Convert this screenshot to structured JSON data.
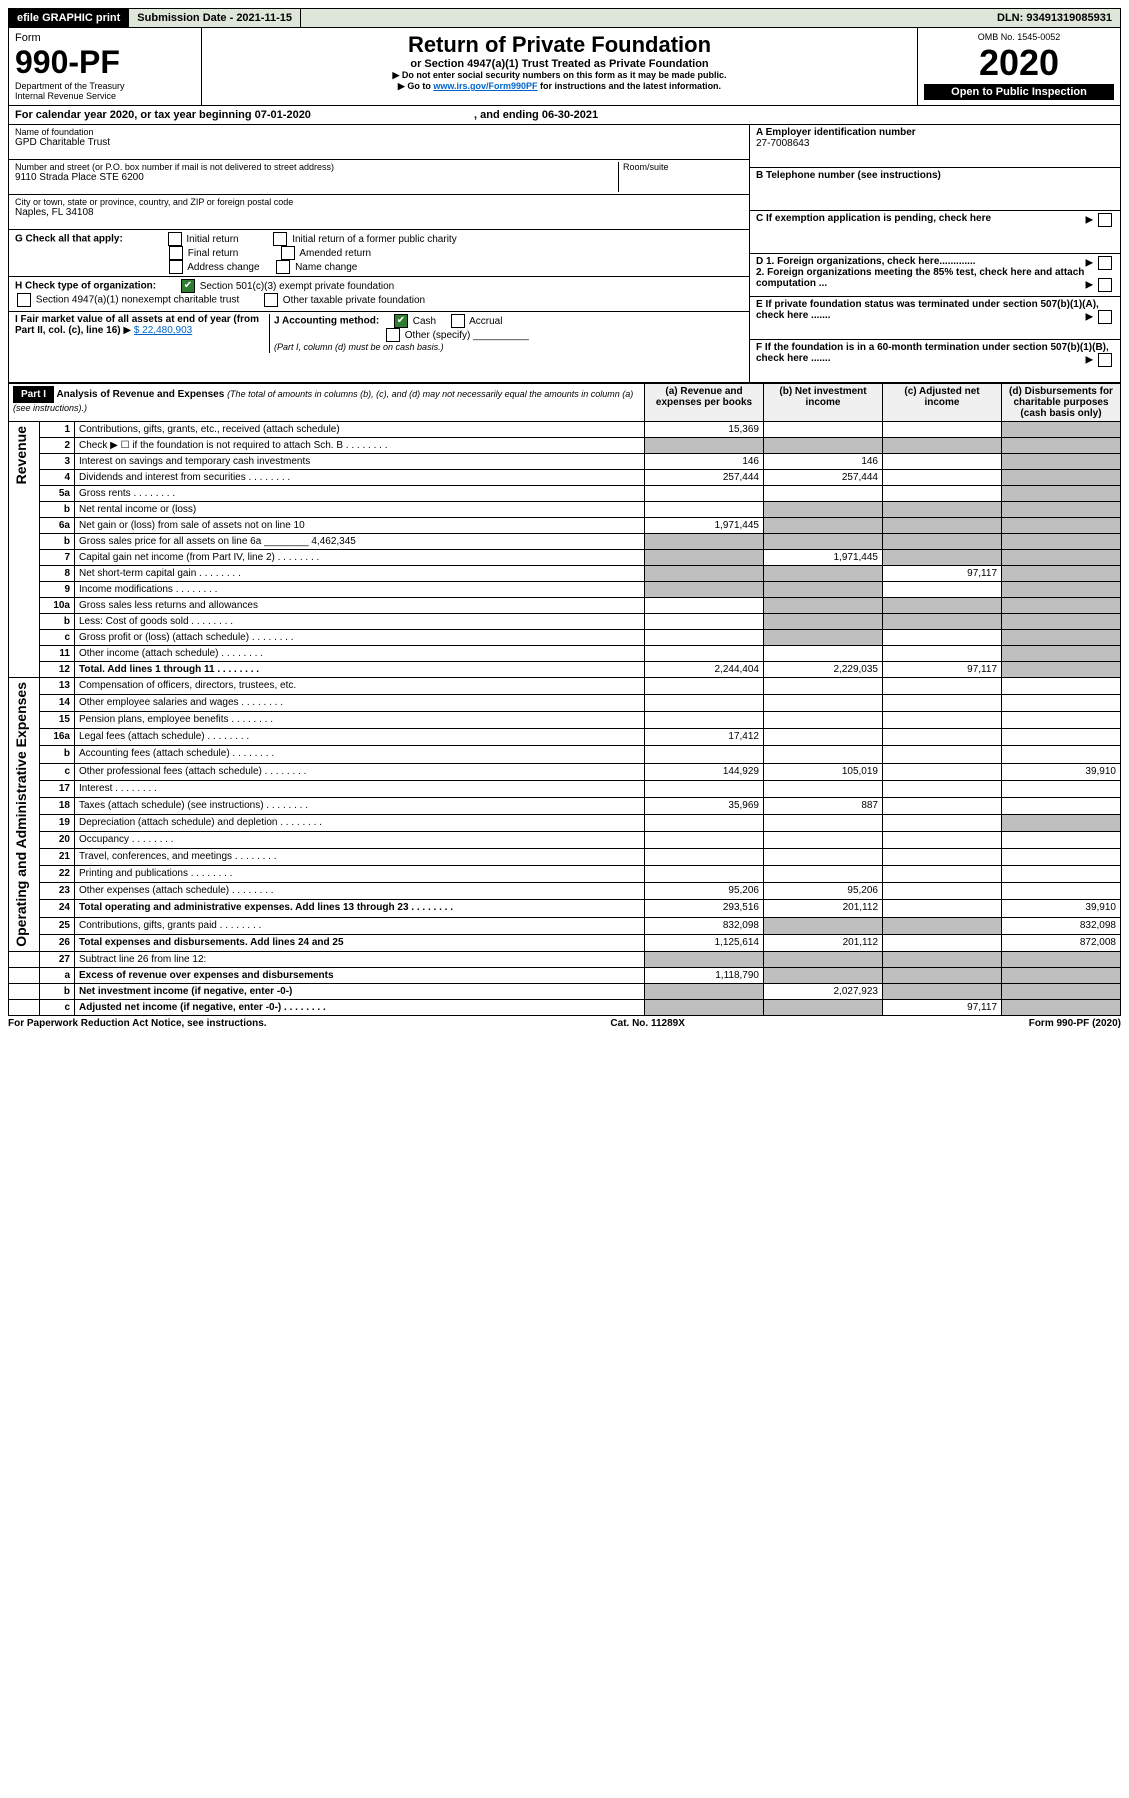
{
  "topbar": {
    "efile": "efile GRAPHIC print",
    "subdate_label": "Submission Date - 2021-11-15",
    "dln": "DLN: 93491319085931"
  },
  "header": {
    "form_word": "Form",
    "form_num": "990-PF",
    "dept": "Department of the Treasury",
    "irs": "Internal Revenue Service",
    "title": "Return of Private Foundation",
    "subtitle": "or Section 4947(a)(1) Trust Treated as Private Foundation",
    "note1": "Do not enter social security numbers on this form as it may be made public.",
    "note2_pre": "Go to ",
    "note2_link": "www.irs.gov/Form990PF",
    "note2_post": " for instructions and the latest information.",
    "omb": "OMB No. 1545-0052",
    "year": "2020",
    "inspect": "Open to Public Inspection"
  },
  "cal": {
    "text_pre": "For calendar year 2020, or tax year beginning ",
    "begin": "07-01-2020",
    "text_mid": ", and ending ",
    "end": "06-30-2021"
  },
  "info": {
    "name_label": "Name of foundation",
    "name": "GPD Charitable Trust",
    "addr_label": "Number and street (or P.O. box number if mail is not delivered to street address)",
    "addr": "9110 Strada Place STE 6200",
    "room_label": "Room/suite",
    "city_label": "City or town, state or province, country, and ZIP or foreign postal code",
    "city": "Naples, FL  34108",
    "ein_label": "A Employer identification number",
    "ein": "27-7008643",
    "tel_label": "B Telephone number (see instructions)",
    "c_label": "C If exemption application is pending, check here",
    "g_label": "G Check all that apply:",
    "g1": "Initial return",
    "g2": "Initial return of a former public charity",
    "g3": "Final return",
    "g4": "Amended return",
    "g5": "Address change",
    "g6": "Name change",
    "d1": "D 1. Foreign organizations, check here.............",
    "d2": "2. Foreign organizations meeting the 85% test, check here and attach computation ...",
    "h_label": "H Check type of organization:",
    "h1": "Section 501(c)(3) exempt private foundation",
    "h2": "Section 4947(a)(1) nonexempt charitable trust",
    "h3": "Other taxable private foundation",
    "e_label": "E  If private foundation status was terminated under section 507(b)(1)(A), check here .......",
    "i_label": "I Fair market value of all assets at end of year (from Part II, col. (c), line 16) ",
    "i_val": "$  22,480,903",
    "j_label": "J Accounting method:",
    "j1": "Cash",
    "j2": "Accrual",
    "j3": "Other (specify)",
    "j_note": "(Part I, column (d) must be on cash basis.)",
    "f_label": "F  If the foundation is in a 60-month termination under section 507(b)(1)(B), check here ......."
  },
  "part1": {
    "label": "Part I",
    "title": "Analysis of Revenue and Expenses",
    "title_note": " (The total of amounts in columns (b), (c), and (d) may not necessarily equal the amounts in column (a) (see instructions).)",
    "col_a": "(a) Revenue and expenses per books",
    "col_b": "(b) Net investment income",
    "col_c": "(c) Adjusted net income",
    "col_d": "(d) Disbursements for charitable purposes (cash basis only)"
  },
  "vlabels": {
    "revenue": "Revenue",
    "expenses": "Operating and Administrative Expenses"
  },
  "rows": [
    {
      "n": "1",
      "t": "Contributions, gifts, grants, etc., received (attach schedule)",
      "a": "15,369",
      "b": "",
      "c": "",
      "d": "",
      "d_sh": true
    },
    {
      "n": "2",
      "t": "Check ▶ ☐ if the foundation is not required to attach Sch. B",
      "dots": true,
      "a": "",
      "b": "",
      "c": "",
      "d": "",
      "a_sh": true,
      "b_sh": true,
      "c_sh": true,
      "d_sh": true
    },
    {
      "n": "3",
      "t": "Interest on savings and temporary cash investments",
      "a": "146",
      "b": "146",
      "c": "",
      "d": "",
      "d_sh": true
    },
    {
      "n": "4",
      "t": "Dividends and interest from securities",
      "dots": true,
      "a": "257,444",
      "b": "257,444",
      "c": "",
      "d": "",
      "d_sh": true
    },
    {
      "n": "5a",
      "t": "Gross rents",
      "dots": true,
      "a": "",
      "b": "",
      "c": "",
      "d": "",
      "d_sh": true
    },
    {
      "n": "b",
      "t": "Net rental income or (loss)",
      "a": "",
      "b": "",
      "c": "",
      "d": "",
      "a_sh": false,
      "b_sh": true,
      "c_sh": true,
      "d_sh": true
    },
    {
      "n": "6a",
      "t": "Net gain or (loss) from sale of assets not on line 10",
      "a": "1,971,445",
      "b": "",
      "c": "",
      "d": "",
      "b_sh": true,
      "c_sh": true,
      "d_sh": true
    },
    {
      "n": "b",
      "t": "Gross sales price for all assets on line 6a ________ 4,462,345",
      "a": "",
      "b": "",
      "c": "",
      "d": "",
      "a_sh": true,
      "b_sh": true,
      "c_sh": true,
      "d_sh": true
    },
    {
      "n": "7",
      "t": "Capital gain net income (from Part IV, line 2)",
      "dots": true,
      "a": "",
      "b": "1,971,445",
      "c": "",
      "d": "",
      "a_sh": true,
      "c_sh": true,
      "d_sh": true
    },
    {
      "n": "8",
      "t": "Net short-term capital gain",
      "dots": true,
      "a": "",
      "b": "",
      "c": "97,117",
      "d": "",
      "a_sh": true,
      "b_sh": true,
      "d_sh": true
    },
    {
      "n": "9",
      "t": "Income modifications",
      "dots": true,
      "a": "",
      "b": "",
      "c": "",
      "d": "",
      "a_sh": true,
      "b_sh": true,
      "d_sh": true
    },
    {
      "n": "10a",
      "t": "Gross sales less returns and allowances",
      "a": "",
      "b": "",
      "c": "",
      "d": "",
      "a_sh": false,
      "b_sh": true,
      "c_sh": true,
      "d_sh": true
    },
    {
      "n": "b",
      "t": "Less: Cost of goods sold",
      "dots": true,
      "a": "",
      "b": "",
      "c": "",
      "d": "",
      "b_sh": true,
      "c_sh": true,
      "d_sh": true
    },
    {
      "n": "c",
      "t": "Gross profit or (loss) (attach schedule)",
      "dots": true,
      "a": "",
      "b": "",
      "c": "",
      "d": "",
      "b_sh": true,
      "d_sh": true
    },
    {
      "n": "11",
      "t": "Other income (attach schedule)",
      "dots": true,
      "a": "",
      "b": "",
      "c": "",
      "d": "",
      "d_sh": true
    },
    {
      "n": "12",
      "t": "Total. Add lines 1 through 11",
      "bold": true,
      "dots": true,
      "a": "2,244,404",
      "b": "2,229,035",
      "c": "97,117",
      "d": "",
      "d_sh": true
    }
  ],
  "exp_rows": [
    {
      "n": "13",
      "t": "Compensation of officers, directors, trustees, etc.",
      "a": "",
      "b": "",
      "c": "",
      "d": ""
    },
    {
      "n": "14",
      "t": "Other employee salaries and wages",
      "dots": true,
      "a": "",
      "b": "",
      "c": "",
      "d": ""
    },
    {
      "n": "15",
      "t": "Pension plans, employee benefits",
      "dots": true,
      "a": "",
      "b": "",
      "c": "",
      "d": ""
    },
    {
      "n": "16a",
      "t": "Legal fees (attach schedule)",
      "dots": true,
      "a": "17,412",
      "b": "",
      "c": "",
      "d": ""
    },
    {
      "n": "b",
      "t": "Accounting fees (attach schedule)",
      "dots": true,
      "a": "",
      "b": "",
      "c": "",
      "d": ""
    },
    {
      "n": "c",
      "t": "Other professional fees (attach schedule)",
      "dots": true,
      "a": "144,929",
      "b": "105,019",
      "c": "",
      "d": "39,910"
    },
    {
      "n": "17",
      "t": "Interest",
      "dots": true,
      "a": "",
      "b": "",
      "c": "",
      "d": ""
    },
    {
      "n": "18",
      "t": "Taxes (attach schedule) (see instructions)",
      "dots": true,
      "a": "35,969",
      "b": "887",
      "c": "",
      "d": ""
    },
    {
      "n": "19",
      "t": "Depreciation (attach schedule) and depletion",
      "dots": true,
      "a": "",
      "b": "",
      "c": "",
      "d": "",
      "d_sh": true
    },
    {
      "n": "20",
      "t": "Occupancy",
      "dots": true,
      "a": "",
      "b": "",
      "c": "",
      "d": ""
    },
    {
      "n": "21",
      "t": "Travel, conferences, and meetings",
      "dots": true,
      "a": "",
      "b": "",
      "c": "",
      "d": ""
    },
    {
      "n": "22",
      "t": "Printing and publications",
      "dots": true,
      "a": "",
      "b": "",
      "c": "",
      "d": ""
    },
    {
      "n": "23",
      "t": "Other expenses (attach schedule)",
      "dots": true,
      "a": "95,206",
      "b": "95,206",
      "c": "",
      "d": ""
    },
    {
      "n": "24",
      "t": "Total operating and administrative expenses. Add lines 13 through 23",
      "bold": true,
      "dots": true,
      "a": "293,516",
      "b": "201,112",
      "c": "",
      "d": "39,910"
    },
    {
      "n": "25",
      "t": "Contributions, gifts, grants paid",
      "dots": true,
      "a": "832,098",
      "b": "",
      "c": "",
      "d": "832,098",
      "b_sh": true,
      "c_sh": true
    },
    {
      "n": "26",
      "t": "Total expenses and disbursements. Add lines 24 and 25",
      "bold": true,
      "a": "1,125,614",
      "b": "201,112",
      "c": "",
      "d": "872,008"
    }
  ],
  "bottom_rows": [
    {
      "n": "27",
      "t": "Subtract line 26 from line 12:",
      "a": "",
      "b": "",
      "c": "",
      "d": "",
      "a_sh": true,
      "b_sh": true,
      "c_sh": true,
      "d_sh": true
    },
    {
      "n": "a",
      "t": "Excess of revenue over expenses and disbursements",
      "bold": true,
      "a": "1,118,790",
      "b": "",
      "c": "",
      "d": "",
      "b_sh": true,
      "c_sh": true,
      "d_sh": true
    },
    {
      "n": "b",
      "t": "Net investment income (if negative, enter -0-)",
      "bold": true,
      "a": "",
      "b": "2,027,923",
      "c": "",
      "d": "",
      "a_sh": true,
      "c_sh": true,
      "d_sh": true
    },
    {
      "n": "c",
      "t": "Adjusted net income (if negative, enter -0-)",
      "bold": true,
      "dots": true,
      "a": "",
      "b": "",
      "c": "97,117",
      "d": "",
      "a_sh": true,
      "b_sh": true,
      "d_sh": true
    }
  ],
  "footer": {
    "left": "For Paperwork Reduction Act Notice, see instructions.",
    "mid": "Cat. No. 11289X",
    "right": "Form 990-PF (2020)"
  }
}
